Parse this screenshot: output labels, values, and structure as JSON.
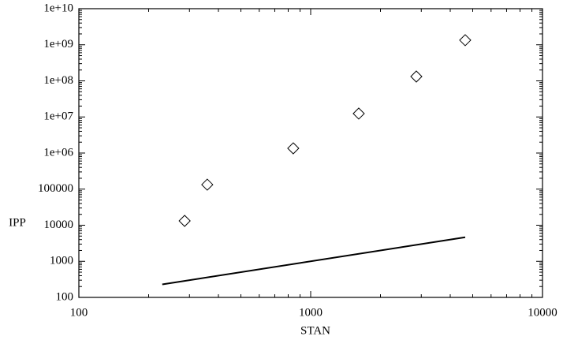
{
  "chart_data": {
    "type": "scatter",
    "x_label": "STAN",
    "y_label": "IPP",
    "xscale": "log",
    "yscale": "log",
    "xlim": [
      100,
      10000
    ],
    "ylim": [
      100,
      10000000000
    ],
    "xticks": [
      100,
      1000,
      10000
    ],
    "yticks": [
      100,
      1000,
      10000,
      100000,
      {
        "value": 1000000,
        "label": "1e+06"
      },
      {
        "value": 10000000,
        "label": "1e+07"
      },
      {
        "value": 100000000,
        "label": "1e+08"
      },
      {
        "value": 1000000000,
        "label": "1e+09"
      },
      {
        "value": 10000000000,
        "label": "1e+10"
      }
    ],
    "series": [
      {
        "mode": "markers",
        "marker": "diamond",
        "color": "#000000",
        "x": [
          286,
          358,
          841,
          1612,
          2856,
          4640
        ],
        "values": [
          13200,
          133000,
          1350000,
          12400000,
          132000000,
          1340000000
        ]
      },
      {
        "mode": "line",
        "color": "#000000",
        "x": [
          229,
          4640
        ],
        "values": [
          229,
          4640
        ]
      }
    ]
  }
}
